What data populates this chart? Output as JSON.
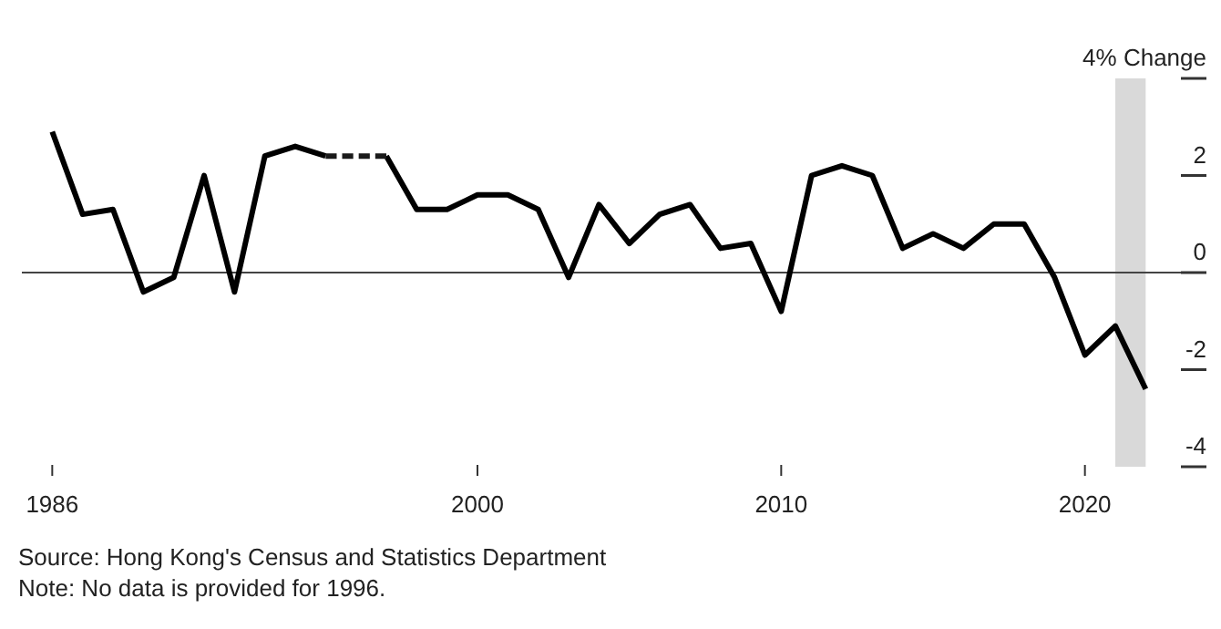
{
  "chart_data": {
    "type": "line",
    "x": [
      1986,
      1987,
      1988,
      1989,
      1990,
      1991,
      1992,
      1993,
      1994,
      1995,
      1996,
      1997,
      1998,
      1999,
      2000,
      2001,
      2002,
      2003,
      2004,
      2005,
      2006,
      2007,
      2008,
      2009,
      2010,
      2011,
      2012,
      2013,
      2014,
      2015,
      2016,
      2017,
      2018,
      2019,
      2020,
      2021,
      2022
    ],
    "series": [
      {
        "color": "#000000",
        "line_style": "solid",
        "values": [
          2.9,
          1.2,
          1.3,
          -0.4,
          -0.1,
          2.0,
          -0.4,
          2.4,
          2.6,
          2.4,
          null,
          2.4,
          1.3,
          1.3,
          1.6,
          1.6,
          1.3,
          -0.1,
          1.4,
          0.6,
          1.2,
          1.4,
          0.5,
          0.6,
          -0.8,
          2.0,
          2.2,
          2.0,
          0.5,
          0.8,
          0.5,
          1.0,
          1.0,
          -0.1,
          -1.7,
          -1.1,
          -2.4
        ]
      },
      {
        "color": "#1a1a1a",
        "line_style": "dashed",
        "x": [
          1995,
          1997
        ],
        "values": [
          2.4,
          2.4
        ]
      }
    ],
    "xlim": [
      1985,
      2024
    ],
    "xticks": [
      1986,
      2000,
      2010,
      2020
    ],
    "ylim": [
      -4,
      4
    ],
    "yticks": [
      {
        "value": 4,
        "label": "4% Change"
      },
      2,
      0,
      -2,
      -4
    ],
    "ref_lines": [
      {
        "axis": "y",
        "value": 0,
        "color": "#444444"
      }
    ],
    "bands": [
      {
        "axis": "x",
        "from": 2021,
        "to": 2022,
        "color": "#d9d9d9"
      }
    ],
    "grid": false,
    "annotations": [
      "Source: Hong Kong's Census and Statistics Department",
      "Note: No data is provided for 1996."
    ]
  }
}
